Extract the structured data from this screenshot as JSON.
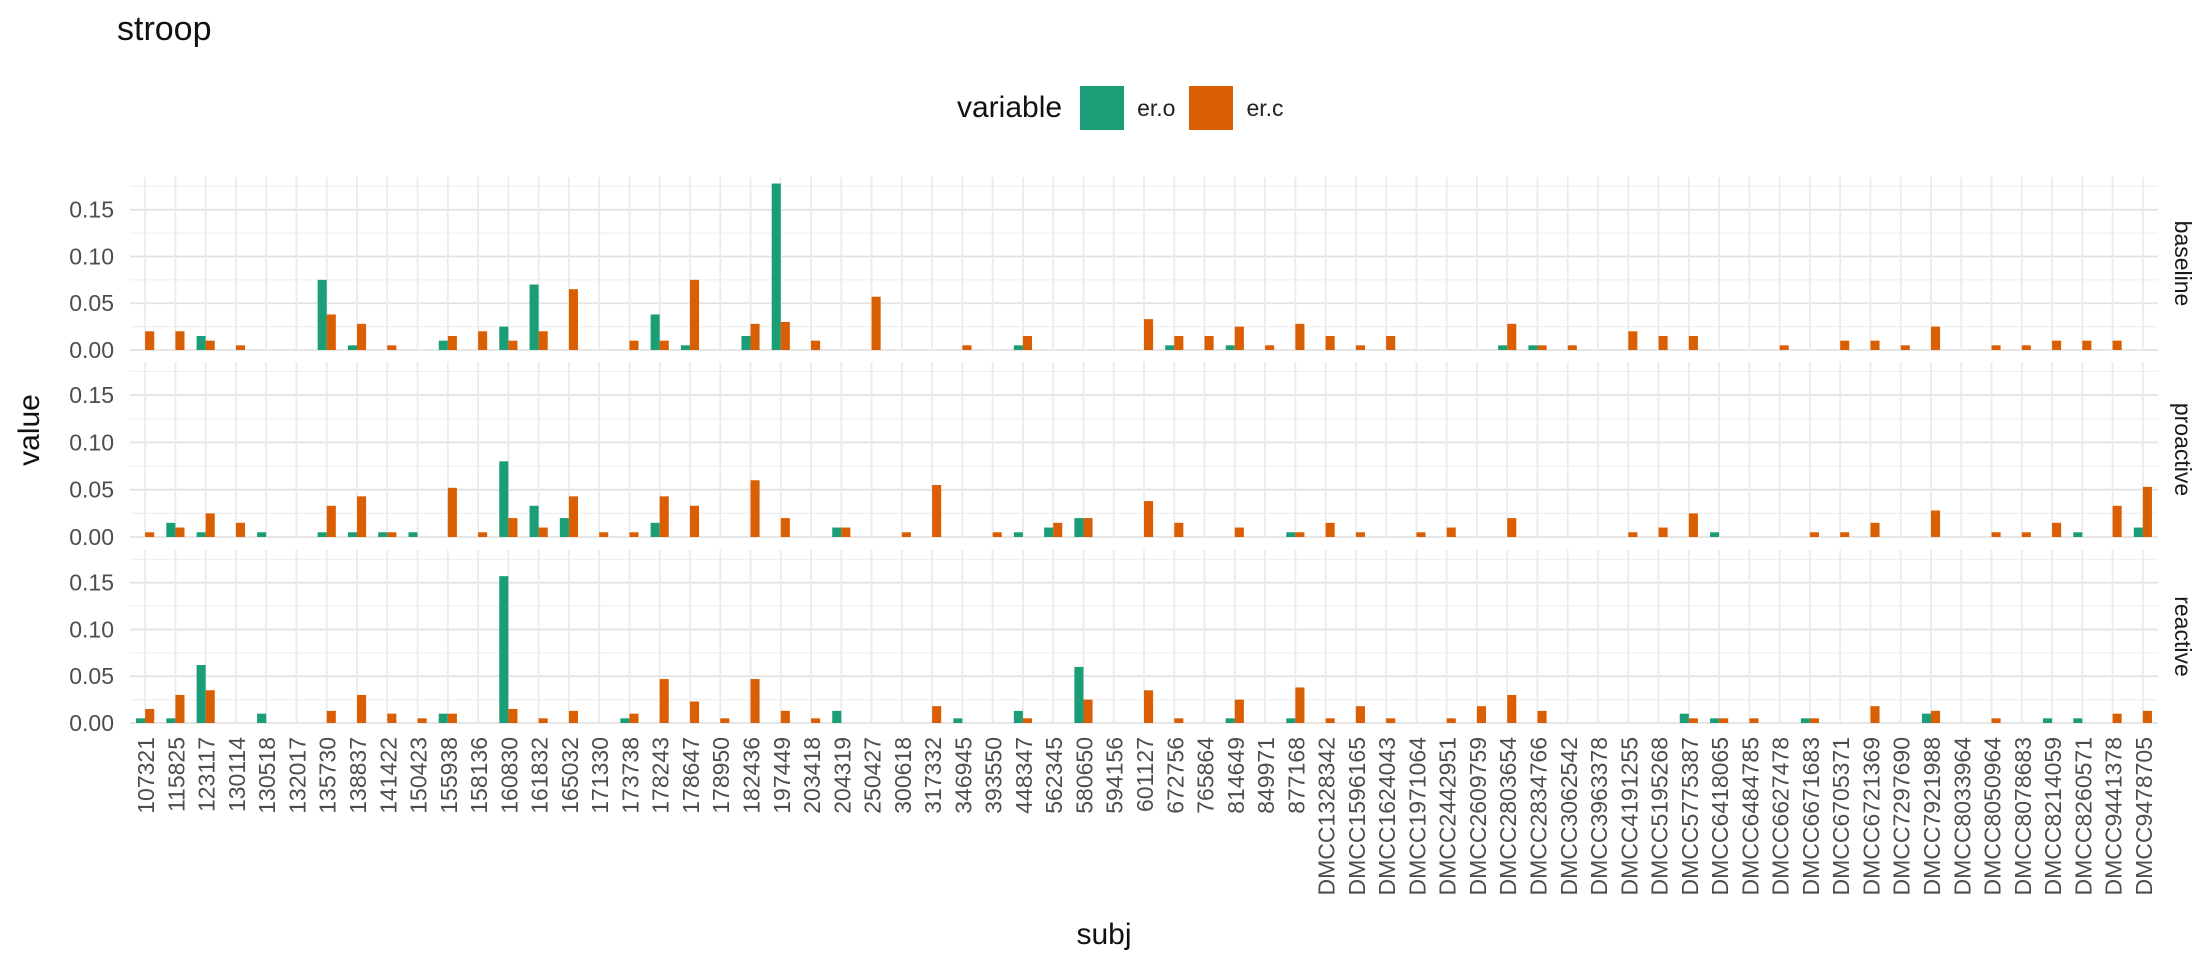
{
  "chart_data": {
    "type": "bar",
    "title": "stroop",
    "xlabel": "subj",
    "ylabel": "value",
    "ylim": [
      0,
      0.185
    ],
    "yticks": [
      0.0,
      0.05,
      0.1,
      0.15
    ],
    "ytick_labels": [
      "0.00",
      "0.05",
      "0.10",
      "0.15"
    ],
    "grid": true,
    "legend": {
      "title": "variable",
      "position": "top",
      "entries": [
        "er.o",
        "er.c"
      ]
    },
    "colors": {
      "er.o": "#1b9e77",
      "er.c": "#d95f02"
    },
    "facets": [
      "baseline",
      "proactive",
      "reactive"
    ],
    "categories": [
      "107321",
      "115825",
      "123117",
      "130114",
      "130518",
      "132017",
      "135730",
      "138837",
      "141422",
      "150423",
      "155938",
      "158136",
      "160830",
      "161832",
      "165032",
      "171330",
      "173738",
      "178243",
      "178647",
      "178950",
      "182436",
      "197449",
      "203418",
      "204319",
      "250427",
      "300618",
      "317332",
      "346945",
      "393550",
      "448347",
      "562345",
      "580650",
      "594156",
      "601127",
      "672756",
      "765864",
      "814649",
      "849971",
      "877168",
      "DMCC1328342",
      "DMCC1596165",
      "DMCC1624043",
      "DMCC1971064",
      "DMCC2442951",
      "DMCC2609759",
      "DMCC2803654",
      "DMCC2834766",
      "DMCC3062542",
      "DMCC3963378",
      "DMCC4191255",
      "DMCC5195268",
      "DMCC5775387",
      "DMCC6418065",
      "DMCC6484785",
      "DMCC6627478",
      "DMCC6671683",
      "DMCC6705371",
      "DMCC6721369",
      "DMCC7297690",
      "DMCC7921988",
      "DMCC8033964",
      "DMCC8050964",
      "DMCC8078683",
      "DMCC8214059",
      "DMCC8260571",
      "DMCC9441378",
      "DMCC9478705"
    ],
    "panels": [
      {
        "facet": "baseline",
        "series": [
          {
            "name": "er.o",
            "values": [
              0,
              0,
              0.015,
              0,
              0,
              0,
              0.075,
              0.005,
              0,
              0,
              0.01,
              0,
              0.025,
              0.07,
              0,
              0,
              0,
              0.038,
              0.005,
              0,
              0.015,
              0.178,
              0,
              0,
              0,
              0,
              0,
              0,
              0,
              0.005,
              0,
              0,
              0,
              0,
              0.005,
              0,
              0.005,
              0,
              0,
              0,
              0,
              0,
              0,
              0,
              0,
              0.005,
              0.005,
              0,
              0,
              0,
              0,
              0,
              0,
              0,
              0,
              0,
              0,
              0,
              0,
              0,
              0,
              0,
              0,
              0,
              0,
              0,
              0
            ]
          },
          {
            "name": "er.c",
            "values": [
              0.02,
              0.02,
              0.01,
              0.005,
              0,
              0,
              0.038,
              0.028,
              0.005,
              0,
              0.015,
              0.02,
              0.01,
              0.02,
              0.065,
              0,
              0.01,
              0.01,
              0.075,
              0,
              0.028,
              0.03,
              0.01,
              0,
              0.057,
              0,
              0,
              0.005,
              0,
              0.015,
              0,
              0,
              0,
              0.033,
              0.015,
              0.015,
              0.025,
              0.005,
              0.028,
              0.015,
              0.005,
              0.015,
              0,
              0,
              0,
              0.028,
              0.005,
              0.005,
              0,
              0.02,
              0.015,
              0.015,
              0,
              0,
              0.005,
              0,
              0.01,
              0.01,
              0.005,
              0.025,
              0,
              0.005,
              0.005,
              0.01,
              0.01,
              0.01,
              0
            ]
          }
        ]
      },
      {
        "facet": "proactive",
        "series": [
          {
            "name": "er.o",
            "values": [
              0,
              0.015,
              0.005,
              0,
              0.005,
              0,
              0.005,
              0.005,
              0.005,
              0.005,
              0,
              0,
              0.08,
              0.033,
              0.02,
              0,
              0,
              0.015,
              0,
              0,
              0,
              0,
              0,
              0.01,
              0,
              0,
              0,
              0,
              0,
              0.005,
              0.01,
              0.02,
              0,
              0,
              0,
              0,
              0,
              0,
              0.005,
              0,
              0,
              0,
              0,
              0,
              0,
              0,
              0,
              0,
              0,
              0,
              0,
              0,
              0.005,
              0,
              0,
              0,
              0,
              0,
              0,
              0,
              0,
              0,
              0,
              0,
              0.005,
              0,
              0.01
            ]
          },
          {
            "name": "er.c",
            "values": [
              0.005,
              0.01,
              0.025,
              0.015,
              0,
              0,
              0.033,
              0.043,
              0.005,
              0,
              0.052,
              0.005,
              0.02,
              0.01,
              0.043,
              0.005,
              0.005,
              0.043,
              0.033,
              0,
              0.06,
              0.02,
              0,
              0.01,
              0,
              0.005,
              0.055,
              0,
              0.005,
              0,
              0.015,
              0.02,
              0,
              0.038,
              0.015,
              0,
              0.01,
              0,
              0.005,
              0.015,
              0.005,
              0,
              0.005,
              0.01,
              0,
              0.02,
              0,
              0,
              0,
              0.005,
              0.01,
              0.025,
              0,
              0,
              0,
              0.005,
              0.005,
              0.015,
              0,
              0.028,
              0,
              0.005,
              0.005,
              0.015,
              0,
              0.033,
              0.053
            ]
          }
        ]
      },
      {
        "facet": "reactive",
        "series": [
          {
            "name": "er.o",
            "values": [
              0.005,
              0.005,
              0.062,
              0,
              0.01,
              0,
              0,
              0,
              0,
              0,
              0.01,
              0,
              0.157,
              0,
              0,
              0,
              0.005,
              0,
              0,
              0,
              0,
              0,
              0,
              0.013,
              0,
              0,
              0,
              0.005,
              0,
              0.013,
              0,
              0.06,
              0,
              0,
              0,
              0,
              0.005,
              0,
              0.005,
              0,
              0,
              0,
              0,
              0,
              0,
              0,
              0,
              0,
              0,
              0,
              0,
              0.01,
              0.005,
              0,
              0,
              0.005,
              0,
              0,
              0,
              0.01,
              0,
              0,
              0,
              0.005,
              0.005,
              0,
              0
            ]
          },
          {
            "name": "er.c",
            "values": [
              0.015,
              0.03,
              0.035,
              0,
              0,
              0,
              0.013,
              0.03,
              0.01,
              0.005,
              0.01,
              0,
              0.015,
              0.005,
              0.013,
              0,
              0.01,
              0.047,
              0.023,
              0.005,
              0.047,
              0.013,
              0.005,
              0,
              0,
              0,
              0.018,
              0,
              0,
              0.005,
              0,
              0.025,
              0,
              0.035,
              0.005,
              0,
              0.025,
              0,
              0.038,
              0.005,
              0.018,
              0.005,
              0,
              0.005,
              0.018,
              0.03,
              0.013,
              0,
              0,
              0,
              0,
              0.005,
              0.005,
              0.005,
              0,
              0.005,
              0,
              0.018,
              0,
              0.013,
              0,
              0.005,
              0,
              0,
              0,
              0.01,
              0.013
            ]
          }
        ]
      }
    ]
  }
}
